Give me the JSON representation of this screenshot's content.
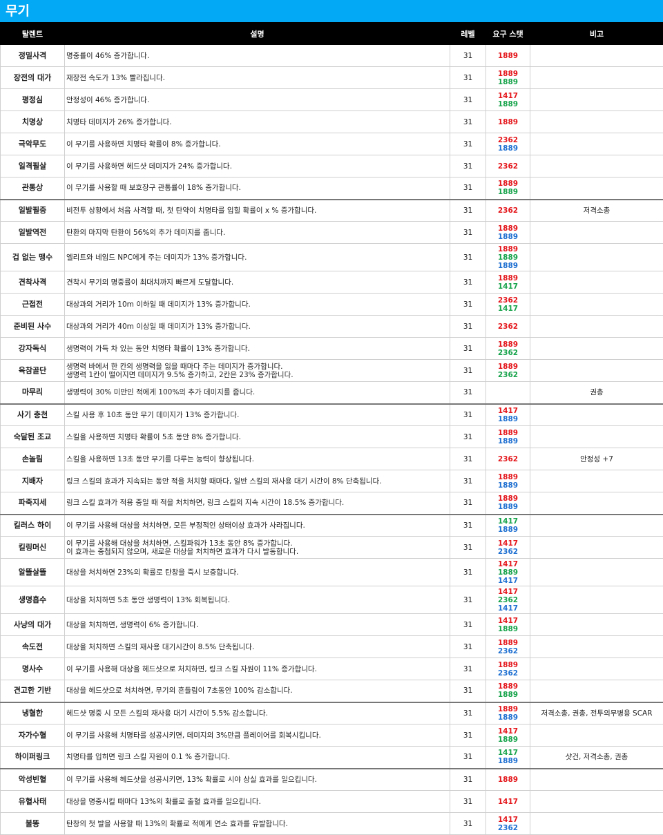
{
  "title": "무기",
  "headers": {
    "name": "탈렌트",
    "desc": "설명",
    "level": "레벨",
    "stat": "요구 스탯",
    "note": "비고"
  },
  "colors": {
    "title_bg": "#03a9f4",
    "header_bg": "#000000",
    "red": "#e4161b",
    "green": "#16a34a",
    "blue": "#1d6fd1"
  },
  "rows": [
    {
      "name": "정밀사격",
      "desc": [
        "명중률이 46% 증가합니다."
      ],
      "level": "31",
      "stats": [
        {
          "v": "1889",
          "c": "red"
        }
      ],
      "note": "",
      "h": 32
    },
    {
      "name": "장전의 대가",
      "desc": [
        "재장전 속도가 13% 빨라집니다."
      ],
      "level": "31",
      "stats": [
        {
          "v": "1889",
          "c": "red"
        },
        {
          "v": "1889",
          "c": "green"
        }
      ],
      "note": "",
      "h": 32
    },
    {
      "name": "평정심",
      "desc": [
        "안정성이 46% 증가합니다."
      ],
      "level": "31",
      "stats": [
        {
          "v": "1417",
          "c": "red"
        },
        {
          "v": "1889",
          "c": "green"
        }
      ],
      "note": "",
      "h": 32
    },
    {
      "name": "치명상",
      "desc": [
        "치명타 데미지가 26% 증가합니다."
      ],
      "level": "31",
      "stats": [
        {
          "v": "1889",
          "c": "red"
        }
      ],
      "note": "",
      "h": 32
    },
    {
      "name": "극악무도",
      "desc": [
        "이 무기를 사용하면 치명타 확률이 8% 증가합니다."
      ],
      "level": "31",
      "stats": [
        {
          "v": "2362",
          "c": "red"
        },
        {
          "v": "1889",
          "c": "blue"
        }
      ],
      "note": "",
      "h": 32
    },
    {
      "name": "일격필살",
      "desc": [
        "이 무기를 사용하면 헤드샷 데미지가 24% 증가합니다."
      ],
      "level": "31",
      "stats": [
        {
          "v": "2362",
          "c": "red"
        }
      ],
      "note": "",
      "h": 32
    },
    {
      "name": "관통상",
      "desc": [
        "이 무기를 사용할 때 보호장구 관통률이 18% 증가합니다."
      ],
      "level": "31",
      "stats": [
        {
          "v": "1889",
          "c": "red"
        },
        {
          "v": "1889",
          "c": "green"
        }
      ],
      "note": "",
      "h": 32
    },
    {
      "name": "일발필중",
      "desc": [
        "비전투 상황에서 처음 사격할 때, 첫 탄약이 치명타를 입힐 확률이 x % 증가합니다."
      ],
      "level": "31",
      "stats": [
        {
          "v": "2362",
          "c": "red"
        }
      ],
      "note": "저격소총",
      "h": 32,
      "group": true
    },
    {
      "name": "일발역전",
      "desc": [
        "탄환의 마지막 탄환이 56%의 추가 데미지를 줍니다."
      ],
      "level": "31",
      "stats": [
        {
          "v": "1889",
          "c": "red"
        },
        {
          "v": "1889",
          "c": "blue"
        }
      ],
      "note": "",
      "h": 32
    },
    {
      "name": "겁 없는 맹수",
      "desc": [
        "엘리트와 네임드 NPC에게 주는 데미지가 13% 증가합니다."
      ],
      "level": "31",
      "stats": [
        {
          "v": "1889",
          "c": "red"
        },
        {
          "v": "1889",
          "c": "green"
        },
        {
          "v": "1889",
          "c": "blue"
        }
      ],
      "note": "",
      "h": 40
    },
    {
      "name": "견착사격",
      "desc": [
        "견착시 무기의 명중률이 최대치까지 빠르게 도달합니다."
      ],
      "level": "31",
      "stats": [
        {
          "v": "1889",
          "c": "red"
        },
        {
          "v": "1417",
          "c": "green"
        }
      ],
      "note": "",
      "h": 32
    },
    {
      "name": "근접전",
      "desc": [
        "대상과의 거리가 10m 이하일 때 데미지가 13% 증가합니다."
      ],
      "level": "31",
      "stats": [
        {
          "v": "2362",
          "c": "red"
        },
        {
          "v": "1417",
          "c": "green"
        }
      ],
      "note": "",
      "h": 32
    },
    {
      "name": "준비된 사수",
      "desc": [
        "대상과의 거리가 40m 이상일 때 데미지가 13% 증가합니다."
      ],
      "level": "31",
      "stats": [
        {
          "v": "2362",
          "c": "red"
        }
      ],
      "note": "",
      "h": 32
    },
    {
      "name": "강자독식",
      "desc": [
        "생명력이 가득 차 있는 동안 치명타 확률이 13% 증가합니다."
      ],
      "level": "31",
      "stats": [
        {
          "v": "1889",
          "c": "red"
        },
        {
          "v": "2362",
          "c": "green"
        }
      ],
      "note": "",
      "h": 32
    },
    {
      "name": "육참골단",
      "desc": [
        "생명력 바에서 한 칸의 생명력을 잃을 때마다 주는 데미지가 증가합니다.",
        "생명력 1칸이 떨어지면 데미지가 9.5% 증가하고, 2칸은 23% 증가합니다."
      ],
      "level": "31",
      "stats": [
        {
          "v": "1889",
          "c": "red"
        },
        {
          "v": "2362",
          "c": "green"
        }
      ],
      "note": "",
      "h": 32
    },
    {
      "name": "마무리",
      "desc": [
        "생명력이 30% 미만인 적에게 100%의 추가 데미지를 줍니다."
      ],
      "level": "31",
      "stats": [],
      "note": "권총",
      "h": 32
    },
    {
      "name": "사기 충천",
      "desc": [
        "스킬 사용 후 10초 동안 무기 데미지가 13% 증가합니다."
      ],
      "level": "31",
      "stats": [
        {
          "v": "1417",
          "c": "red"
        },
        {
          "v": "1889",
          "c": "blue"
        }
      ],
      "note": "",
      "h": 32,
      "group": true
    },
    {
      "name": "숙달된 조교",
      "desc": [
        "스킬을 사용하면 치명타 확률이 5초 동안 8% 증가합니다."
      ],
      "level": "31",
      "stats": [
        {
          "v": "1889",
          "c": "red"
        },
        {
          "v": "1889",
          "c": "blue"
        }
      ],
      "note": "",
      "h": 32
    },
    {
      "name": "손놀림",
      "desc": [
        "스킬을 사용하면 13초 동안 무기를 다루는 능력이 향상됩니다."
      ],
      "level": "31",
      "stats": [
        {
          "v": "2362",
          "c": "red"
        }
      ],
      "note": "안정성 +7",
      "h": 32
    },
    {
      "name": "지배자",
      "desc": [
        "링크 스킬의 효과가 지속되는 동안 적을 처치할 때마다, 일반 스킬의 재사용 대기 시간이 8% 단축됩니다."
      ],
      "level": "31",
      "stats": [
        {
          "v": "1889",
          "c": "red"
        },
        {
          "v": "1889",
          "c": "blue"
        }
      ],
      "note": "",
      "h": 32
    },
    {
      "name": "파죽지세",
      "desc": [
        "링크 스킬 효과가 적용 중일 때 적을 처치하면, 링크 스킬의 지속 시간이 18.5% 증가합니다."
      ],
      "level": "31",
      "stats": [
        {
          "v": "1889",
          "c": "red"
        },
        {
          "v": "1889",
          "c": "blue"
        }
      ],
      "note": "",
      "h": 32
    },
    {
      "name": "킬러스 하이",
      "desc": [
        "이 무기를 사용해 대상을 처치하면, 모든 부정적인 상태이상 효과가 사라집니다."
      ],
      "level": "31",
      "stats": [
        {
          "v": "1417",
          "c": "green"
        },
        {
          "v": "1889",
          "c": "blue"
        }
      ],
      "note": "",
      "h": 32,
      "group": true
    },
    {
      "name": "킬링머신",
      "desc": [
        "이 무기를 사용해 대상을 처치하면, 스킬파워가 13초 동안 8% 증가합니다.",
        "이 효과는 중첩되지 않으며, 새로운 대상을 처치하면 효과가 다시 발동합니다."
      ],
      "level": "31",
      "stats": [
        {
          "v": "1417",
          "c": "red"
        },
        {
          "v": "2362",
          "c": "blue"
        }
      ],
      "note": "",
      "h": 32
    },
    {
      "name": "알뜰살뜰",
      "desc": [
        "대상을 처치하면 23%의 확률로 탄창을 즉시 보충합니다."
      ],
      "level": "31",
      "stats": [
        {
          "v": "1417",
          "c": "red"
        },
        {
          "v": "1889",
          "c": "green"
        },
        {
          "v": "1417",
          "c": "blue"
        }
      ],
      "note": "",
      "h": 40
    },
    {
      "name": "생명흡수",
      "desc": [
        "대상을 처치하면 5초 동안 생명력이 13% 회복됩니다."
      ],
      "level": "31",
      "stats": [
        {
          "v": "1417",
          "c": "red"
        },
        {
          "v": "2362",
          "c": "green"
        },
        {
          "v": "1417",
          "c": "blue"
        }
      ],
      "note": "",
      "h": 40
    },
    {
      "name": "사냥의 대가",
      "desc": [
        "대상을 처치하면, 생명력이 6% 증가합니다."
      ],
      "level": "31",
      "stats": [
        {
          "v": "1417",
          "c": "red"
        },
        {
          "v": "1889",
          "c": "green"
        }
      ],
      "note": "",
      "h": 32
    },
    {
      "name": "속도전",
      "desc": [
        "대상을 처치하면 스킬의 재사용 대기시간이 8.5% 단축됩니다."
      ],
      "level": "31",
      "stats": [
        {
          "v": "1889",
          "c": "red"
        },
        {
          "v": "2362",
          "c": "blue"
        }
      ],
      "note": "",
      "h": 32
    },
    {
      "name": "명사수",
      "desc": [
        "이 무기를 사용해 대상을 헤드샷으로 처치하면, 링크 스킬 자원이 11% 증가합니다."
      ],
      "level": "31",
      "stats": [
        {
          "v": "1889",
          "c": "red"
        },
        {
          "v": "2362",
          "c": "blue"
        }
      ],
      "note": "",
      "h": 32
    },
    {
      "name": "견고한 기반",
      "desc": [
        "대상을 헤드샷으로 처치하면, 무기의 흔들림이 7초동안 100% 감소합니다."
      ],
      "level": "31",
      "stats": [
        {
          "v": "1889",
          "c": "red"
        },
        {
          "v": "1889",
          "c": "green"
        }
      ],
      "note": "",
      "h": 32
    },
    {
      "name": "냉혈한",
      "desc": [
        "헤드샷 명중 시 모든 스킬의 재사용 대기 시간이 5.5% 감소합니다."
      ],
      "level": "31",
      "stats": [
        {
          "v": "1889",
          "c": "red"
        },
        {
          "v": "1889",
          "c": "blue"
        }
      ],
      "note": "저격소총, 권총, 전투의무병용 SCAR",
      "h": 32,
      "group": true
    },
    {
      "name": "자가수혈",
      "desc": [
        "이 무기를 사용해 치명타를 성공시키면, 데미지의 3%만큼 플레이어를 회복시킵니다."
      ],
      "level": "31",
      "stats": [
        {
          "v": "1417",
          "c": "red"
        },
        {
          "v": "1889",
          "c": "green"
        }
      ],
      "note": "",
      "h": 32
    },
    {
      "name": "하이퍼링크",
      "desc": [
        "치명타를 입히면 링크 스킬 자원이 0.1 % 증가합니다."
      ],
      "level": "31",
      "stats": [
        {
          "v": "1417",
          "c": "green"
        },
        {
          "v": "1889",
          "c": "blue"
        }
      ],
      "note": "샷건, 저격소총, 권총",
      "h": 32
    },
    {
      "name": "악성빈혈",
      "desc": [
        "이 무기를 사용해 헤드샷을 성공시키면, 13% 확률로 시야 상실 효과를 일으킵니다."
      ],
      "level": "31",
      "stats": [
        {
          "v": "1889",
          "c": "red"
        }
      ],
      "note": "",
      "h": 32,
      "group": true
    },
    {
      "name": "유혈사태",
      "desc": [
        "대상을 명중시킬 때마다 13%의 확률로 출혈 효과를 일으킵니다."
      ],
      "level": "31",
      "stats": [
        {
          "v": "1417",
          "c": "red"
        }
      ],
      "note": "",
      "h": 32
    },
    {
      "name": "불똥",
      "desc": [
        "탄창의 첫 발을 사용할 때 13%의 확률로 적에게 연소 효과를 유발합니다."
      ],
      "level": "31",
      "stats": [
        {
          "v": "1417",
          "c": "red"
        },
        {
          "v": "2362",
          "c": "blue"
        }
      ],
      "note": "",
      "h": 32
    }
  ]
}
